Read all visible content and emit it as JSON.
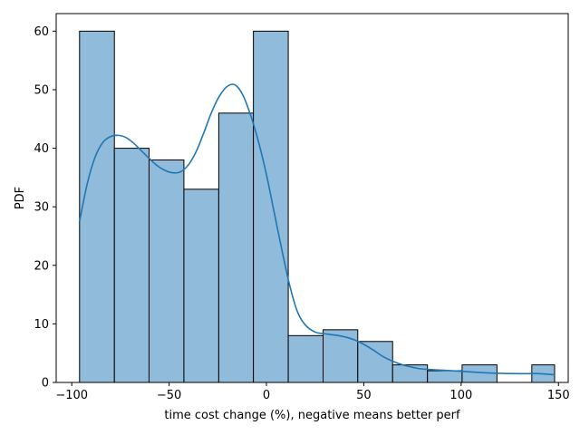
{
  "chart_data": {
    "type": "bar",
    "xlabel": "time cost change (%), negative means better perf",
    "ylabel": "PDF",
    "xlim": [
      -108,
      155
    ],
    "ylim": [
      0,
      63
    ],
    "xticks": [
      -100,
      -50,
      0,
      50,
      100,
      150
    ],
    "yticks": [
      0,
      10,
      20,
      30,
      40,
      50,
      60
    ],
    "bin_edges": [
      -96,
      -78.1,
      -60.3,
      -42.4,
      -24.5,
      -6.7,
      11.2,
      29.1,
      46.9,
      64.8,
      82.7,
      100.5,
      118.4,
      136.3,
      148
    ],
    "counts": [
      60,
      40,
      38,
      33,
      46,
      60,
      8,
      9,
      7,
      3,
      2,
      3,
      0,
      3
    ],
    "bar_color": "#90bbdb",
    "edge_color": "#000000",
    "kde_color": "#1f77b4",
    "kde": {
      "x": [
        -96,
        -92,
        -88,
        -84,
        -80,
        -76,
        -72,
        -68,
        -64,
        -60,
        -56,
        -52,
        -48,
        -44,
        -40,
        -36,
        -32,
        -28,
        -24,
        -20,
        -16,
        -12,
        -8,
        -4,
        0,
        4,
        8,
        12,
        16,
        20,
        25,
        30,
        35,
        40,
        45,
        50,
        55,
        60,
        65,
        70,
        75,
        80,
        90,
        100,
        110,
        120,
        130,
        140,
        148
      ],
      "y": [
        27.5,
        34,
        38.5,
        41,
        42,
        42.2,
        41.8,
        40.8,
        39.5,
        38.2,
        37,
        36.2,
        35.8,
        36,
        37.2,
        39.5,
        42.8,
        46.3,
        49,
        50.6,
        50.8,
        49,
        45.5,
        41,
        35.5,
        29,
        22.5,
        16.5,
        12,
        9.8,
        8.6,
        8.3,
        8.1,
        7.8,
        7.3,
        6.5,
        5.5,
        4.4,
        3.6,
        3.0,
        2.6,
        2.3,
        2.1,
        1.9,
        1.7,
        1.55,
        1.5,
        1.5,
        1.3
      ]
    }
  }
}
